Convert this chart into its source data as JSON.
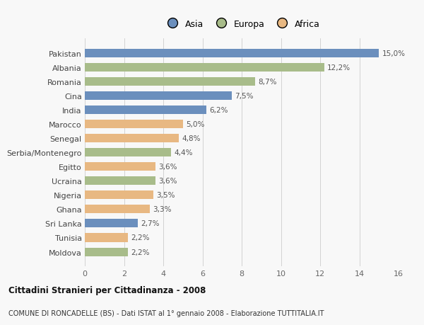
{
  "countries": [
    "Moldova",
    "Tunisia",
    "Sri Lanka",
    "Ghana",
    "Nigeria",
    "Ucraina",
    "Egitto",
    "Serbia/Montenegro",
    "Senegal",
    "Marocco",
    "India",
    "Cina",
    "Romania",
    "Albania",
    "Pakistan"
  ],
  "values": [
    2.2,
    2.2,
    2.7,
    3.3,
    3.5,
    3.6,
    3.6,
    4.4,
    4.8,
    5.0,
    6.2,
    7.5,
    8.7,
    12.2,
    15.0
  ],
  "continents": [
    "Europa",
    "Africa",
    "Asia",
    "Africa",
    "Africa",
    "Europa",
    "Africa",
    "Europa",
    "Africa",
    "Africa",
    "Asia",
    "Asia",
    "Europa",
    "Europa",
    "Asia"
  ],
  "colors": {
    "Asia": "#6b8fbd",
    "Europa": "#a8bc8a",
    "Africa": "#e8b882"
  },
  "legend_labels": [
    "Asia",
    "Europa",
    "Africa"
  ],
  "legend_colors": [
    "#6b8fbd",
    "#a8bc8a",
    "#e8b882"
  ],
  "xlim": [
    0,
    16
  ],
  "xticks": [
    0,
    2,
    4,
    6,
    8,
    10,
    12,
    14,
    16
  ],
  "title1": "Cittadini Stranieri per Cittadinanza - 2008",
  "title2": "COMUNE DI RONCADELLE (BS) - Dati ISTAT al 1° gennaio 2008 - Elaborazione TUTTITALIA.IT",
  "background_color": "#f8f8f8",
  "bar_height": 0.6
}
